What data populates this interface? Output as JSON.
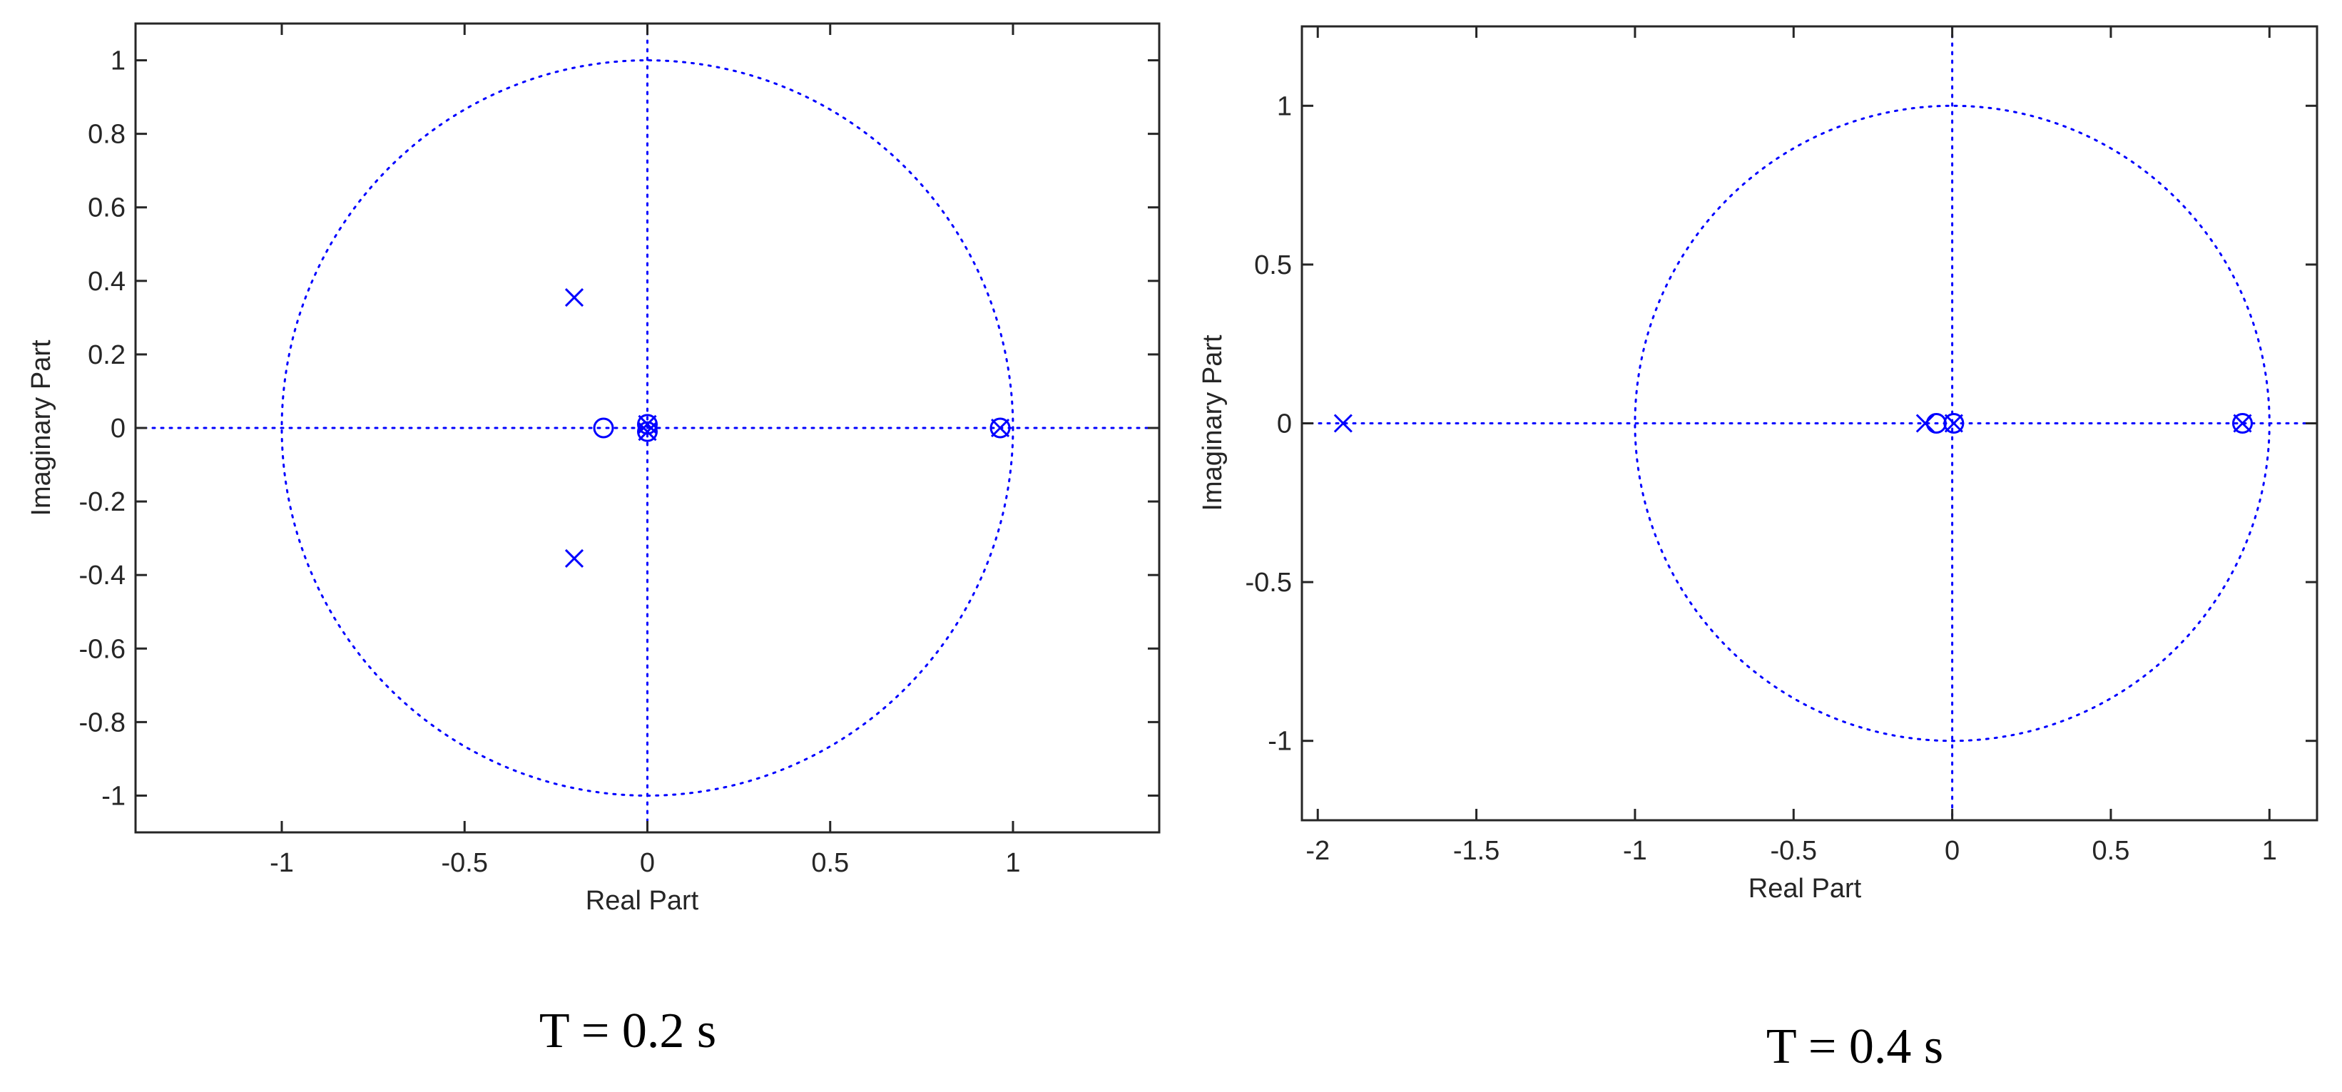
{
  "chart_data": [
    {
      "type": "scatter",
      "subtype": "pole-zero",
      "caption": "T = 0.2 s",
      "xlabel": "Real Part",
      "ylabel": "Imaginary Part",
      "xlim": [
        -1.4,
        1.4
      ],
      "ylim": [
        -1.1,
        1.1
      ],
      "xticks": [
        -1,
        -0.5,
        0,
        0.5,
        1
      ],
      "xtick_labels": [
        "-1",
        "-0.5",
        "0",
        "0.5",
        "1"
      ],
      "yticks": [
        -1,
        -0.8,
        -0.6,
        -0.4,
        -0.2,
        0,
        0.2,
        0.4,
        0.6,
        0.8,
        1
      ],
      "ytick_labels": [
        "-1",
        "-0.8",
        "-0.6",
        "-0.4",
        "-0.2",
        "0",
        "0.2",
        "0.4",
        "0.6",
        "0.8",
        "1"
      ],
      "grid": false,
      "unit_circle": true,
      "zeros": [
        [
          -0.12,
          0
        ],
        [
          0,
          0.01
        ],
        [
          0,
          -0.01
        ],
        [
          0.965,
          0
        ]
      ],
      "poles": [
        [
          -0.2,
          0.355
        ],
        [
          -0.2,
          -0.355
        ],
        [
          0,
          0.01
        ],
        [
          0,
          -0.01
        ],
        [
          0.965,
          0
        ]
      ]
    },
    {
      "type": "scatter",
      "subtype": "pole-zero",
      "caption": "T = 0.4 s",
      "xlabel": "Real Part",
      "ylabel": "Imaginary Part",
      "xlim": [
        -2.05,
        1.15
      ],
      "ylim": [
        -1.25,
        1.25
      ],
      "xticks": [
        -2,
        -1.5,
        -1,
        -0.5,
        0,
        0.5,
        1
      ],
      "xtick_labels": [
        "-2",
        "-1.5",
        "-1",
        "-0.5",
        "0",
        "0.5",
        "1"
      ],
      "yticks": [
        -1,
        -0.5,
        0,
        0.5,
        1
      ],
      "ytick_labels": [
        "-1",
        "-0.5",
        "0",
        "0.5",
        "1"
      ],
      "grid": false,
      "unit_circle": true,
      "zeros": [
        [
          -0.05,
          0
        ],
        [
          0.005,
          0
        ],
        [
          0.915,
          0
        ]
      ],
      "poles": [
        [
          -1.92,
          0
        ],
        [
          -0.085,
          0
        ],
        [
          0.005,
          0
        ],
        [
          0.915,
          0
        ]
      ]
    }
  ],
  "colors": {
    "marker": "#0000ff",
    "axes": "#262626",
    "background": "#ffffff"
  }
}
